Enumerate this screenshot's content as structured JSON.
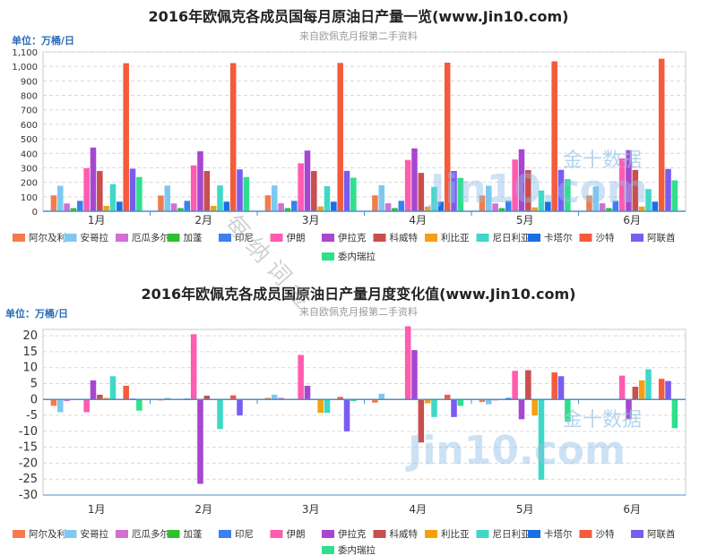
{
  "watermark": {
    "diagonal": "每 纳 词 金",
    "brand_cn": "金十数据",
    "brand_en": "Jin10.com"
  },
  "legend_names": [
    "阿尔及利亚",
    "安哥拉",
    "厄瓜多尔",
    "加蓬",
    "印尼",
    "伊朗",
    "伊拉克",
    "科威特",
    "利比亚",
    "尼日利亚",
    "卡塔尔",
    "沙特",
    "阿联酋",
    "委内瑞拉"
  ],
  "colors": [
    "#f47c4c",
    "#7ec8f0",
    "#d36ed3",
    "#2ec02e",
    "#3b7ff0",
    "#ff5bb0",
    "#a846d0",
    "#c94e4e",
    "#f5a00f",
    "#3fd8c8",
    "#1a6ee6",
    "#f55b3b",
    "#7a5cf0",
    "#2fe08a"
  ],
  "chart_data": [
    {
      "type": "bar",
      "title": "2016年欧佩克各成员国每月原油日产量一览(www.Jin10.com)",
      "subtitle": "来自欧佩克月报第二手资料",
      "ylabel": "单位：万桶/日",
      "categories": [
        "1月",
        "2月",
        "3月",
        "4月",
        "5月",
        "6月"
      ],
      "ylim": [
        0,
        1100
      ],
      "yticks": [
        0,
        100,
        200,
        300,
        400,
        500,
        600,
        700,
        800,
        900,
        1000,
        1100
      ],
      "ytick_labels": [
        "0",
        "100",
        "200",
        "300",
        "400",
        "500",
        "600",
        "700",
        "800",
        "900",
        "1,000",
        "1,100"
      ],
      "grid": true,
      "legend": "bottom",
      "series": [
        {
          "name": "阿尔及利亚",
          "values": [
            110,
            109,
            110,
            110,
            109,
            109
          ]
        },
        {
          "name": "安哥拉",
          "values": [
            176,
            177,
            178,
            180,
            176,
            172
          ]
        },
        {
          "name": "厄瓜多尔",
          "values": [
            54,
            54,
            55,
            55,
            54,
            55
          ]
        },
        {
          "name": "加蓬",
          "values": [
            22,
            22,
            22,
            22,
            22,
            22
          ]
        },
        {
          "name": "印尼",
          "values": [
            72,
            72,
            72,
            72,
            72,
            72
          ]
        },
        {
          "name": "伊朗",
          "values": [
            297,
            317,
            331,
            354,
            357,
            365
          ]
        },
        {
          "name": "伊拉克",
          "values": [
            440,
            414,
            419,
            434,
            428,
            422
          ]
        },
        {
          "name": "科威特",
          "values": [
            278,
            278,
            278,
            265,
            284,
            285
          ]
        },
        {
          "name": "利比亚",
          "values": [
            37,
            37,
            33,
            32,
            27,
            33
          ]
        },
        {
          "name": "尼日利亚",
          "values": [
            187,
            178,
            173,
            168,
            143,
            153
          ]
        },
        {
          "name": "卡塔尔",
          "values": [
            66,
            66,
            66,
            66,
            66,
            66
          ]
        },
        {
          "name": "沙特",
          "values": [
            1022,
            1023,
            1024,
            1026,
            1035,
            1053
          ]
        },
        {
          "name": "阿联酋",
          "values": [
            294,
            289,
            279,
            278,
            286,
            292
          ]
        },
        {
          "name": "委内瑞拉",
          "values": [
            236,
            236,
            232,
            230,
            222,
            213
          ]
        }
      ]
    },
    {
      "type": "bar",
      "title": "2016年欧佩克各成员国原油日产量月度变化值(www.Jin10.com)",
      "subtitle": "来自欧佩克月报第二手资料",
      "ylabel": "单位：万桶/日",
      "categories": [
        "1月",
        "2月",
        "3月",
        "4月",
        "5月",
        "6月"
      ],
      "ylim": [
        -30,
        22
      ],
      "yticks": [
        -30,
        -25,
        -20,
        -15,
        -10,
        -5,
        0,
        5,
        10,
        15,
        20
      ],
      "ytick_labels": [
        "-30",
        "-25",
        "-20",
        "-15",
        "-10",
        "-5",
        "0",
        "5",
        "10",
        "15",
        "20"
      ],
      "grid": true,
      "legend": "bottom",
      "series": [
        {
          "name": "阿尔及利亚",
          "values": [
            -2,
            -0.3,
            0.5,
            -1,
            -0.8,
            0.2
          ]
        },
        {
          "name": "安哥拉",
          "values": [
            -4,
            0.5,
            1.5,
            1.8,
            -1.5,
            0.2
          ]
        },
        {
          "name": "厄瓜多尔",
          "values": [
            -0.5,
            0.2,
            0.5,
            0.2,
            -0.3,
            0.2
          ]
        },
        {
          "name": "加蓬",
          "values": [
            0.2,
            0.1,
            0.1,
            0.1,
            0.2,
            0.1
          ]
        },
        {
          "name": "印尼",
          "values": [
            0.2,
            0.3,
            0.1,
            0.2,
            0.5,
            0.2
          ]
        },
        {
          "name": "伊朗",
          "values": [
            -4,
            20.5,
            14,
            23,
            9,
            7.5
          ]
        },
        {
          "name": "伊拉克",
          "values": [
            6,
            -26.5,
            4.3,
            15.5,
            -6.2,
            -6.2
          ]
        },
        {
          "name": "科威特",
          "values": [
            1.5,
            1.2,
            0,
            -13.5,
            9.2,
            4
          ]
        },
        {
          "name": "利比亚",
          "values": [
            0.5,
            -0.2,
            -4.2,
            -1.2,
            -5,
            6
          ]
        },
        {
          "name": "尼日利亚",
          "values": [
            7.3,
            -9.3,
            -4.2,
            -5.5,
            -25.2,
            9.5
          ]
        },
        {
          "name": "卡塔尔",
          "values": [
            0.2,
            0.1,
            0.1,
            0.1,
            0.2,
            0.2
          ]
        },
        {
          "name": "沙特",
          "values": [
            4.3,
            1.3,
            0.8,
            1.5,
            8.5,
            6.5
          ]
        },
        {
          "name": "阿联酋",
          "values": [
            0.3,
            -5,
            -10,
            -5.5,
            7.3,
            5.8
          ]
        },
        {
          "name": "委内瑞拉",
          "values": [
            -3.5,
            0.2,
            -0.5,
            -2,
            -7,
            -9
          ]
        }
      ]
    }
  ]
}
